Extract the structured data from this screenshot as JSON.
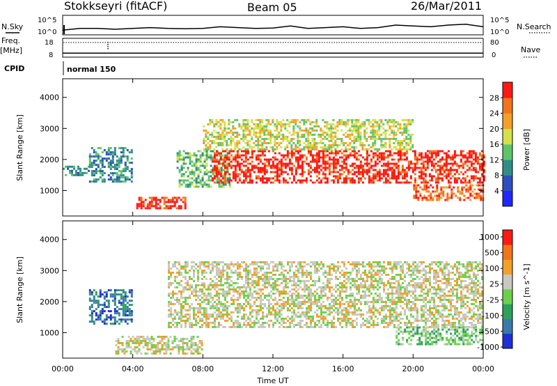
{
  "header": {
    "station": "Stokkseyri (fitACF)",
    "beam": "Beam 05",
    "date": "26/Mar/2011"
  },
  "status_panels": {
    "nsky_label": "N.Sky",
    "nsearch_label": "N.Search",
    "nsky_ticks": [
      "10^5",
      "10^0"
    ],
    "nsearch_ticks": [
      "10^5",
      "10^0"
    ],
    "freq_label_1": "Freq.",
    "freq_label_2": "[MHz]",
    "freq_ticks": [
      "18",
      "8"
    ],
    "nave_label": "Nave",
    "nave_ticks": [
      "80",
      "0"
    ],
    "cpid_label": "CPID",
    "cpid_value": "normal 150"
  },
  "chart_data": [
    {
      "type": "heatmap",
      "name": "power",
      "xlabel": "Time UT",
      "ylabel": "Slant Range [km]",
      "x_ticks": [
        "00:00",
        "04:00",
        "08:00",
        "12:00",
        "16:00",
        "20:00",
        "00:00"
      ],
      "xlim_hours": [
        0,
        24
      ],
      "y_ticks": [
        1000,
        2000,
        3000,
        4000
      ],
      "ylim": [
        180,
        4600
      ],
      "colorbar": {
        "label": "Power [dB]",
        "ticks": [
          "4",
          "8",
          "12",
          "16",
          "20",
          "24",
          "28"
        ],
        "colors": [
          "#1f26ff",
          "#2c4fc0",
          "#2f8f86",
          "#5cc46b",
          "#d6e04a",
          "#f4a028",
          "#f2741a",
          "#ff1a14"
        ]
      },
      "features": [
        {
          "t_start": 0.0,
          "t_end": 1.5,
          "range_start": 1500,
          "range_end": 1800,
          "level": 2
        },
        {
          "t_start": 1.5,
          "t_end": 4.0,
          "range_start": 1300,
          "range_end": 2400,
          "level": 2
        },
        {
          "t_start": 4.2,
          "t_end": 7.0,
          "range_start": 450,
          "range_end": 800,
          "level": 7
        },
        {
          "t_start": 6.5,
          "t_end": 9.5,
          "range_start": 1100,
          "range_end": 2300,
          "level": 3
        },
        {
          "t_start": 8.5,
          "t_end": 24.0,
          "range_start": 1250,
          "range_end": 2300,
          "level": 7
        },
        {
          "t_start": 8.0,
          "t_end": 20.0,
          "range_start": 2300,
          "range_end": 3300,
          "level": 4
        },
        {
          "t_start": 20.0,
          "t_end": 24.0,
          "range_start": 700,
          "range_end": 1200,
          "level": 6
        }
      ]
    },
    {
      "type": "heatmap",
      "name": "velocity",
      "xlabel": "Time UT",
      "ylabel": "Slant Range [km]",
      "x_ticks": [
        "00:00",
        "04:00",
        "08:00",
        "12:00",
        "16:00",
        "20:00",
        "00:00"
      ],
      "xlim_hours": [
        0,
        24
      ],
      "y_ticks": [
        1000,
        2000,
        3000,
        4000
      ],
      "ylim": [
        180,
        4600
      ],
      "colorbar": {
        "label": "Velocity [m s^-1]",
        "ticks": [
          "1000",
          "500",
          "100",
          "25",
          "-25",
          "-100",
          "-500",
          "-1000"
        ],
        "colors": [
          "#1f2fd8",
          "#3a7aa8",
          "#2aa25a",
          "#6ad24a",
          "#c8c8c0",
          "#f4a028",
          "#f27418",
          "#ff1a14"
        ]
      },
      "features": [
        {
          "t_start": 1.5,
          "t_end": 4.0,
          "range_start": 1300,
          "range_end": 2400,
          "level": 1
        },
        {
          "t_start": 3.0,
          "t_end": 8.0,
          "range_start": 300,
          "range_end": 900,
          "level": 4
        },
        {
          "t_start": 6.0,
          "t_end": 24.0,
          "range_start": 1200,
          "range_end": 3300,
          "level": 4
        },
        {
          "t_start": 19.0,
          "t_end": 24.0,
          "range_start": 600,
          "range_end": 1200,
          "level": 3
        }
      ]
    }
  ],
  "status_series": {
    "nsky": [
      0.2,
      0.3,
      0.3,
      0.25,
      0.3,
      0.35,
      0.3,
      0.28,
      0.3,
      0.4,
      0.35,
      0.3,
      0.32,
      0.45,
      0.3,
      0.35,
      0.4,
      0.3,
      0.35,
      0.5,
      0.45,
      0.4,
      0.5,
      0.55,
      0.4
    ],
    "nave": [
      0.15,
      0.15,
      0.15,
      0.15,
      0.15,
      0.15,
      0.15,
      0.15,
      0.15,
      0.15,
      0.15,
      0.15,
      0.15,
      0.15,
      0.15,
      0.15,
      0.15,
      0.15,
      0.15,
      0.15,
      0.15,
      0.15,
      0.15,
      0.15,
      0.15
    ]
  }
}
